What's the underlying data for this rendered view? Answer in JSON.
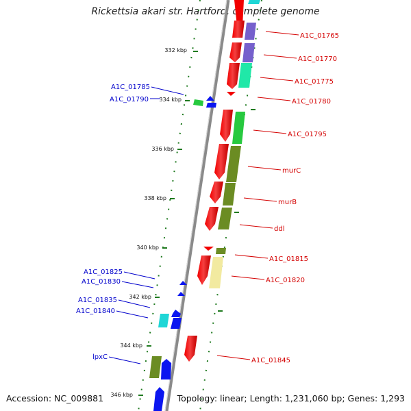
{
  "title": "Rickettsia akari str. Hartford, complete genome",
  "accession_text": "Accession: NC_009881",
  "summary_text": "Topology: linear; Length: 1,231,060 bp; Genes: 1,293",
  "colors": {
    "plus_label": "#d40000",
    "minus_label": "#0000cc",
    "backbone": "#8a8a8a",
    "scale_ticks": "#1f7a1f",
    "red": "#f20000",
    "green": "#27c93f",
    "olive": "#6b8c23",
    "purple": "#7560cc",
    "aqua": "#20e8a8",
    "cyan": "#1fd6d6",
    "yellow": "#f2eaa0",
    "blue": "#0b16f0"
  },
  "scale_labels": [
    "332 kbp",
    "334 kbp",
    "336 kbp",
    "338 kbp",
    "340 kbp",
    "342 kbp",
    "344 kbp",
    "346 kbp"
  ],
  "plus_strand_labels": [
    "A1C_01765",
    "A1C_01770",
    "A1C_01775",
    "A1C_01780",
    "A1C_01795",
    "murC",
    "murB",
    "ddl",
    "A1C_01815",
    "A1C_01820",
    "A1C_01845"
  ],
  "minus_strand_labels": [
    "A1C_01785",
    "A1C_01790",
    "A1C_01825",
    "A1C_01830",
    "A1C_01835",
    "A1C_01840",
    "lpxC"
  ]
}
